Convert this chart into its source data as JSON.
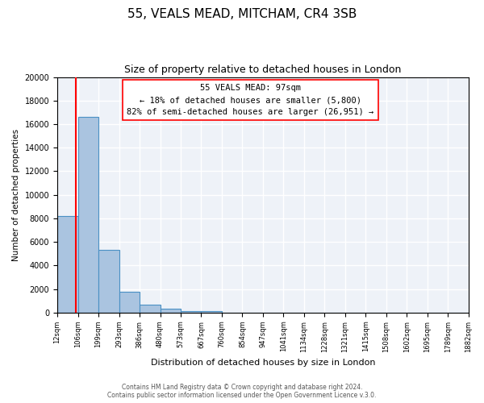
{
  "title": "55, VEALS MEAD, MITCHAM, CR4 3SB",
  "subtitle": "Size of property relative to detached houses in London",
  "xlabel": "Distribution of detached houses by size in London",
  "ylabel": "Number of detached properties",
  "bin_edges": [
    12,
    106,
    199,
    293,
    386,
    480,
    573,
    667,
    760,
    854,
    947,
    1041,
    1134,
    1228,
    1321,
    1415,
    1508,
    1602,
    1695,
    1789,
    1882
  ],
  "bin_labels": [
    "12sqm",
    "106sqm",
    "199sqm",
    "293sqm",
    "386sqm",
    "480sqm",
    "573sqm",
    "667sqm",
    "760sqm",
    "854sqm",
    "947sqm",
    "1041sqm",
    "1134sqm",
    "1228sqm",
    "1321sqm",
    "1415sqm",
    "1508sqm",
    "1602sqm",
    "1695sqm",
    "1789sqm",
    "1882sqm"
  ],
  "bar_heights": [
    8200,
    16600,
    5300,
    1800,
    700,
    300,
    150,
    100,
    0,
    0,
    0,
    0,
    0,
    0,
    0,
    0,
    0,
    0,
    0,
    0
  ],
  "bar_color": "#aac4e0",
  "bar_edge_color": "#4a90c4",
  "ylim": [
    0,
    20000
  ],
  "yticks": [
    0,
    2000,
    4000,
    6000,
    8000,
    10000,
    12000,
    14000,
    16000,
    18000,
    20000
  ],
  "property_size_label": "55 VEALS MEAD: 97sqm",
  "red_line_x": 97,
  "annotation_line1": "← 18% of detached houses are smaller (5,800)",
  "annotation_line2": "82% of semi-detached houses are larger (26,951) →",
  "footer_line1": "Contains HM Land Registry data © Crown copyright and database right 2024.",
  "footer_line2": "Contains public sector information licensed under the Open Government Licence v.3.0.",
  "background_color": "#eef2f8",
  "grid_color": "#ffffff",
  "fig_bg_color": "#ffffff"
}
